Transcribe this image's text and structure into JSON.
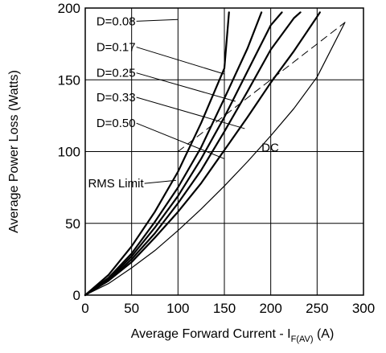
{
  "chart_data": {
    "type": "line",
    "xlabel": "Average Forward Current - I",
    "xlabel_sub": "F(AV)",
    "xlabel_unit": " (A)",
    "ylabel": "Average Power Loss (Watts)",
    "xlim": [
      0,
      300
    ],
    "ylim": [
      0,
      200
    ],
    "xticks": [
      "0",
      "50",
      "100",
      "150",
      "200",
      "250",
      "300"
    ],
    "yticks": [
      "0",
      "50",
      "100",
      "150",
      "200"
    ],
    "grid": true,
    "series": [
      {
        "name": "D=0.08",
        "style": "solid",
        "x": [
          0,
          25,
          50,
          75,
          100,
          125,
          150,
          155
        ],
        "y": [
          0,
          14,
          34,
          58,
          86,
          120,
          158,
          197
        ]
      },
      {
        "name": "D=0.17",
        "style": "solid",
        "x": [
          0,
          25,
          50,
          75,
          100,
          125,
          150,
          175,
          190
        ],
        "y": [
          0,
          12,
          29,
          51,
          75,
          103,
          137,
          172,
          197
        ]
      },
      {
        "name": "D=0.25",
        "style": "solid",
        "x": [
          0,
          25,
          50,
          75,
          100,
          125,
          150,
          175,
          200,
          212
        ],
        "y": [
          0,
          11,
          27,
          47,
          69,
          95,
          124,
          156,
          188,
          197
        ]
      },
      {
        "name": "D=0.33",
        "style": "solid",
        "x": [
          0,
          25,
          50,
          75,
          100,
          125,
          150,
          175,
          200,
          225,
          232
        ],
        "y": [
          0,
          10,
          25,
          43,
          64,
          87,
          114,
          142,
          171,
          193,
          197
        ]
      },
      {
        "name": "D=0.50",
        "style": "solid",
        "x": [
          0,
          25,
          50,
          75,
          100,
          125,
          150,
          175,
          200,
          225,
          250,
          253
        ],
        "y": [
          0,
          10,
          23,
          40,
          58,
          78,
          101,
          124,
          148,
          170,
          194,
          197
        ]
      },
      {
        "name": "DC",
        "style": "solid-thin",
        "x": [
          0,
          25,
          50,
          75,
          100,
          125,
          150,
          175,
          200,
          225,
          250,
          280
        ],
        "y": [
          0,
          8,
          19,
          31,
          45,
          60,
          76,
          93,
          111,
          130,
          152,
          190
        ]
      },
      {
        "name": "RMS Limit",
        "style": "dashed",
        "x": [
          100,
          280
        ],
        "y": [
          100,
          190
        ]
      }
    ],
    "annotations": [
      {
        "text": "D=0.08",
        "x": 12,
        "y": 188,
        "tx": 100,
        "ty": 192
      },
      {
        "text": "D=0.17",
        "x": 12,
        "y": 170,
        "tx": 150,
        "ty": 154
      },
      {
        "text": "D=0.25",
        "x": 12,
        "y": 152,
        "tx": 162,
        "ty": 135
      },
      {
        "text": "D=0.33",
        "x": 12,
        "y": 135,
        "tx": 172,
        "ty": 116
      },
      {
        "text": "D=0.50",
        "x": 12,
        "y": 117,
        "tx": 150,
        "ty": 95
      },
      {
        "text": "RMS Limit",
        "x": 3,
        "y": 75,
        "tx": 98,
        "ty": 80
      },
      {
        "text": "DC",
        "x": 190,
        "y": 100
      }
    ]
  }
}
